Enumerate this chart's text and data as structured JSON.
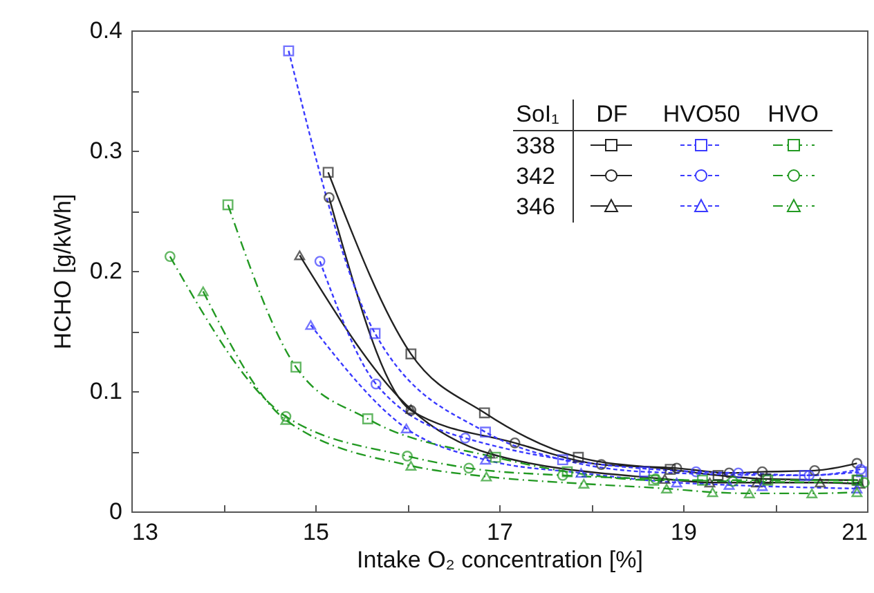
{
  "chart_data": {
    "type": "line",
    "xlabel": "Intake O₂ concentration [%]",
    "ylabel": "HCHO [g/kWh]",
    "legend_title": "SoI₁",
    "annotations": [
      "DF",
      "HVO50",
      "HVO",
      "338",
      "342",
      "346"
    ],
    "grid": false,
    "xlim": [
      13,
      21
    ],
    "xticks": [
      13,
      {
        "value": 14,
        "label": null
      },
      15,
      {
        "value": 16,
        "label": null
      },
      17,
      {
        "value": 18,
        "label": null
      },
      19,
      {
        "value": 20,
        "label": null
      },
      21
    ],
    "ylim": [
      0,
      0.4
    ],
    "yticks": [
      0,
      {
        "value": 0.05,
        "label": null
      },
      0.1,
      {
        "value": 0.15,
        "label": null
      },
      0.2,
      {
        "value": 0.25,
        "label": null
      },
      0.3,
      {
        "value": 0.35,
        "label": null
      },
      0.4
    ],
    "series": [
      {
        "color": "#222222",
        "marker": "square",
        "line_style": "solid",
        "x": [
          15.14,
          16.04,
          16.84,
          17.86,
          18.86,
          19.38,
          19.9,
          20.9
        ],
        "values": [
          0.282,
          0.131,
          0.082,
          0.045,
          0.035,
          0.03,
          0.027,
          0.026
        ]
      },
      {
        "color": "#222222",
        "marker": "circle",
        "line_style": "solid",
        "x": [
          15.15,
          16.04,
          17.17,
          18.11,
          18.93,
          19.5,
          19.86,
          20.43,
          20.89
        ],
        "values": [
          0.261,
          0.084,
          0.057,
          0.039,
          0.036,
          0.032,
          0.033,
          0.034,
          0.04
        ]
      },
      {
        "color": "#222222",
        "marker": "triangle",
        "line_style": "solid",
        "x": [
          14.83,
          16.04,
          16.9,
          18.8,
          19.29,
          19.8,
          20.49,
          20.92
        ],
        "values": [
          0.213,
          0.085,
          0.048,
          0.027,
          0.024,
          0.024,
          0.024,
          0.023
        ]
      },
      {
        "color": "#3a3aff",
        "marker": "square",
        "line_style": "dotted",
        "x": [
          14.71,
          15.65,
          16.85,
          17.69,
          18.58,
          20.32,
          20.94
        ],
        "values": [
          0.383,
          0.148,
          0.066,
          0.043,
          0.033,
          0.03,
          0.033
        ]
      },
      {
        "color": "#3a3aff",
        "marker": "circle",
        "line_style": "dotted",
        "x": [
          15.05,
          15.66,
          16.63,
          19.14,
          19.6,
          20.37,
          20.93
        ],
        "values": [
          0.208,
          0.106,
          0.061,
          0.033,
          0.032,
          0.03,
          0.035
        ]
      },
      {
        "color": "#3a3aff",
        "marker": "triangle",
        "line_style": "dotted",
        "x": [
          14.95,
          15.99,
          16.85,
          17.89,
          18.93,
          19.5,
          19.86,
          20.89
        ],
        "values": [
          0.155,
          0.069,
          0.043,
          0.032,
          0.024,
          0.022,
          0.021,
          0.019
        ]
      },
      {
        "color": "#229922",
        "marker": "square",
        "line_style": "dashed",
        "x": [
          14.05,
          14.79,
          15.57,
          16.96,
          17.74,
          18.68,
          19.21,
          19.92,
          20.89
        ],
        "values": [
          0.255,
          0.12,
          0.077,
          0.045,
          0.033,
          0.026,
          0.026,
          0.026,
          0.026
        ]
      },
      {
        "color": "#229922",
        "marker": "circle",
        "line_style": "dashed",
        "x": [
          13.42,
          14.68,
          16.0,
          16.67,
          17.69,
          18.7,
          19.54,
          20.97
        ],
        "values": [
          0.212,
          0.079,
          0.046,
          0.036,
          0.03,
          0.027,
          0.025,
          0.024
        ]
      },
      {
        "color": "#229922",
        "marker": "triangle",
        "line_style": "dashed",
        "x": [
          13.78,
          14.68,
          16.04,
          16.86,
          17.92,
          18.82,
          19.32,
          19.72,
          20.4,
          20.89
        ],
        "values": [
          0.183,
          0.076,
          0.038,
          0.029,
          0.023,
          0.019,
          0.016,
          0.015,
          0.015,
          0.016
        ]
      }
    ]
  }
}
